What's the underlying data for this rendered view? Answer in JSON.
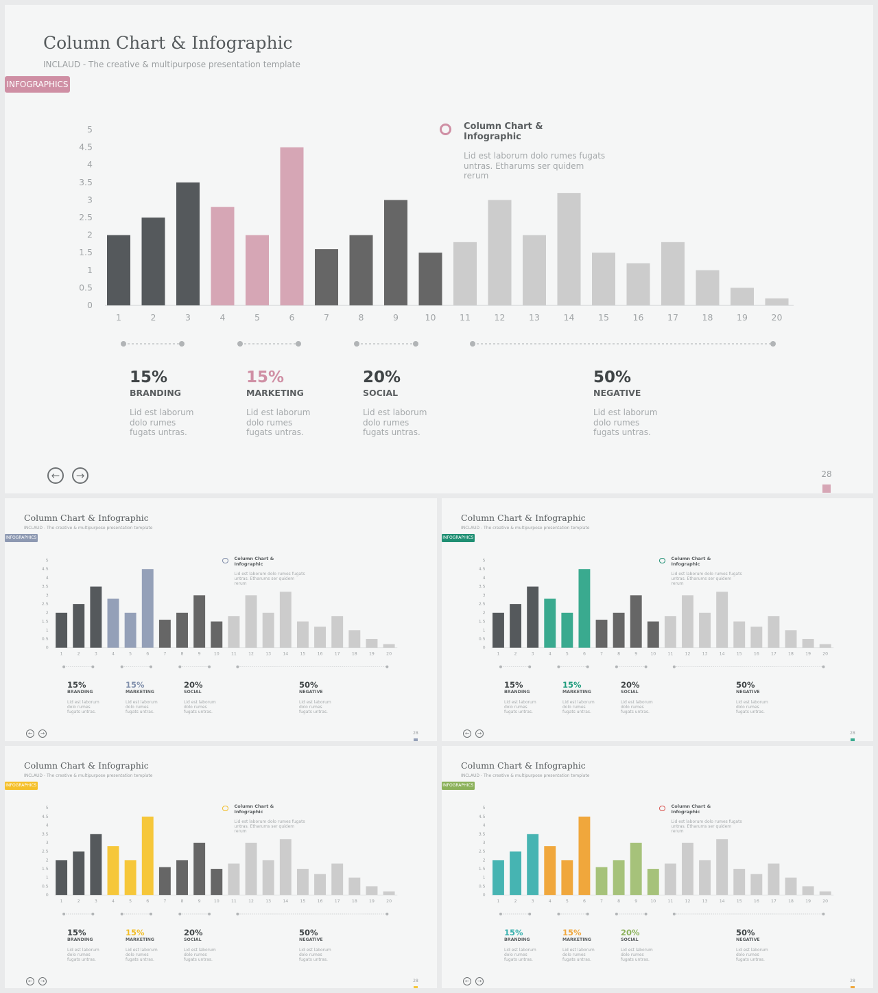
{
  "slides": [
    {
      "title": "Column Chart & Infographic",
      "subtitle": "INCLAUD - The creative & multipurpose presentation template",
      "tag": "INFOGRAPHICS",
      "callout": {
        "title": "Column Chart & Infographic",
        "desc": "Lid est laborum dolo rumes fugats untras. Etharums ser quidem rerum"
      },
      "stats": [
        {
          "pct": "15%",
          "cat": "BRANDING",
          "desc": "Lid est laborum dolo rumes fugats untras."
        },
        {
          "pct": "15%",
          "cat": "MARKETING",
          "desc": "Lid est laborum dolo rumes fugats untras."
        },
        {
          "pct": "20%",
          "cat": "SOCIAL",
          "desc": "Lid est laborum dolo rumes fugats untras."
        },
        {
          "pct": "50%",
          "cat": "NEGATIVE",
          "desc": "Lid est laborum dolo rumes fugats untras."
        }
      ],
      "page_number": "28",
      "colors": {
        "accent": "#d6a6b5",
        "tag": "#cf8fa4",
        "ring": "#cf8fa4",
        "pct": [
          "#3f4446",
          "#cf8fa4",
          "#3f4446",
          "#3f4446"
        ],
        "bars": [
          "#55595c",
          "#55595c",
          "#55595c",
          "#d6a6b5",
          "#d6a6b5",
          "#d6a6b5",
          "#666666",
          "#666666",
          "#666666",
          "#666666",
          "#cccccc",
          "#cccccc",
          "#cccccc",
          "#cccccc",
          "#cccccc",
          "#cccccc",
          "#cccccc",
          "#cccccc",
          "#cccccc",
          "#cccccc"
        ]
      }
    },
    {
      "title": "Column Chart & Infographic",
      "subtitle": "INCLAUD - The creative & multipurpose presentation template",
      "tag": "INFOGRAPHICS",
      "callout": {
        "title": "Column Chart & Infographic",
        "desc": "Lid est laborum dolo rumes fugats untras. Etharums ser quidem rerum"
      },
      "stats": [
        {
          "pct": "15%",
          "cat": "BRANDING",
          "desc": "Lid est laborum dolo rumes fugats untras."
        },
        {
          "pct": "15%",
          "cat": "MARKETING",
          "desc": "Lid est laborum dolo rumes fugats untras."
        },
        {
          "pct": "20%",
          "cat": "SOCIAL",
          "desc": "Lid est laborum dolo rumes fugats untras."
        },
        {
          "pct": "50%",
          "cat": "NEGATIVE",
          "desc": "Lid est laborum dolo rumes fugats untras."
        }
      ],
      "page_number": "28",
      "colors": {
        "accent": "#94a0b8",
        "tag": "#8d99b2",
        "ring": "#7f8ca8",
        "pct": [
          "#3f4446",
          "#8190ac",
          "#3f4446",
          "#3f4446"
        ],
        "bars": [
          "#55595c",
          "#55595c",
          "#55595c",
          "#94a0b8",
          "#94a0b8",
          "#94a0b8",
          "#666666",
          "#666666",
          "#666666",
          "#666666",
          "#cccccc",
          "#cccccc",
          "#cccccc",
          "#cccccc",
          "#cccccc",
          "#cccccc",
          "#cccccc",
          "#cccccc",
          "#cccccc",
          "#cccccc"
        ]
      }
    },
    {
      "title": "Column Chart & Infographic",
      "subtitle": "INCLAUD - The creative & multipurpose presentation template",
      "tag": "INFOGRAPHICS",
      "callout": {
        "title": "Column Chart & Infographic",
        "desc": "Lid est laborum dolo rumes fugats untras. Etharums ser quidem rerum"
      },
      "stats": [
        {
          "pct": "15%",
          "cat": "BRANDING",
          "desc": "Lid est laborum dolo rumes fugats untras."
        },
        {
          "pct": "15%",
          "cat": "MARKETING",
          "desc": "Lid est laborum dolo rumes fugats untras."
        },
        {
          "pct": "20%",
          "cat": "SOCIAL",
          "desc": "Lid est laborum dolo rumes fugats untras."
        },
        {
          "pct": "50%",
          "cat": "NEGATIVE",
          "desc": "Lid est laborum dolo rumes fugats untras."
        }
      ],
      "page_number": "28",
      "colors": {
        "accent": "#3aaa8f",
        "tag": "#1f8f73",
        "ring": "#1f8f73",
        "pct": [
          "#3f4446",
          "#1f9c7d",
          "#3f4446",
          "#3f4446"
        ],
        "bars": [
          "#55595c",
          "#55595c",
          "#55595c",
          "#3aaa8f",
          "#3aaa8f",
          "#3aaa8f",
          "#666666",
          "#666666",
          "#666666",
          "#666666",
          "#cccccc",
          "#cccccc",
          "#cccccc",
          "#cccccc",
          "#cccccc",
          "#cccccc",
          "#cccccc",
          "#cccccc",
          "#cccccc",
          "#cccccc"
        ]
      }
    },
    {
      "title": "Column Chart & Infographic",
      "subtitle": "INCLAUD - The creative & multipurpose presentation template",
      "tag": "INFOGRAPHICS",
      "callout": {
        "title": "Column Chart & Infographic",
        "desc": "Lid est laborum dolo rumes fugats untras. Etharums ser quidem rerum"
      },
      "stats": [
        {
          "pct": "15%",
          "cat": "BRANDING",
          "desc": "Lid est laborum dolo rumes fugats untras."
        },
        {
          "pct": "15%",
          "cat": "MARKETING",
          "desc": "Lid est laborum dolo rumes fugats untras."
        },
        {
          "pct": "20%",
          "cat": "SOCIAL",
          "desc": "Lid est laborum dolo rumes fugats untras."
        },
        {
          "pct": "50%",
          "cat": "NEGATIVE",
          "desc": "Lid est laborum dolo rumes fugats untras."
        }
      ],
      "page_number": "28",
      "colors": {
        "accent": "#f6c73a",
        "tag": "#f5c02a",
        "ring": "#f2bd27",
        "pct": [
          "#3f4446",
          "#f2bd27",
          "#3f4446",
          "#3f4446"
        ],
        "bars": [
          "#55595c",
          "#55595c",
          "#55595c",
          "#f6c73a",
          "#f6c73a",
          "#f6c73a",
          "#666666",
          "#666666",
          "#666666",
          "#666666",
          "#cccccc",
          "#cccccc",
          "#cccccc",
          "#cccccc",
          "#cccccc",
          "#cccccc",
          "#cccccc",
          "#cccccc",
          "#cccccc",
          "#cccccc"
        ]
      }
    },
    {
      "title": "Column Chart & Infographic",
      "subtitle": "INCLAUD - The creative & multipurpose presentation template",
      "tag": "INFOGRAPHICS",
      "callout": {
        "title": "Column Chart & Infographic",
        "desc": "Lid est laborum dolo rumes fugats untras. Etharums ser quidem rerum"
      },
      "stats": [
        {
          "pct": "15%",
          "cat": "BRANDING",
          "desc": "Lid est laborum dolo rumes fugats untras."
        },
        {
          "pct": "15%",
          "cat": "MARKETING",
          "desc": "Lid est laborum dolo rumes fugats untras."
        },
        {
          "pct": "20%",
          "cat": "SOCIAL",
          "desc": "Lid est laborum dolo rumes fugats untras."
        },
        {
          "pct": "50%",
          "cat": "NEGATIVE",
          "desc": "Lid est laborum dolo rumes fugats untras."
        }
      ],
      "page_number": "28",
      "colors": {
        "accent": "#f0a73c",
        "tag": "#8bb15a",
        "ring": "#d9534f",
        "pct": [
          "#3bb2b0",
          "#f0a73c",
          "#8bb15a",
          "#3f4446"
        ],
        "bars": [
          "#46b4b2",
          "#46b4b2",
          "#46b4b2",
          "#f0a73c",
          "#f0a73c",
          "#f0a73c",
          "#a6c27a",
          "#a6c27a",
          "#a6c27a",
          "#a6c27a",
          "#cccccc",
          "#cccccc",
          "#cccccc",
          "#cccccc",
          "#cccccc",
          "#cccccc",
          "#cccccc",
          "#cccccc",
          "#cccccc",
          "#cccccc"
        ]
      }
    }
  ],
  "chart_data": {
    "type": "bar",
    "categories": [
      "1",
      "2",
      "3",
      "4",
      "5",
      "6",
      "7",
      "8",
      "9",
      "10",
      "11",
      "12",
      "13",
      "14",
      "15",
      "16",
      "17",
      "18",
      "19",
      "20"
    ],
    "values": [
      2,
      2.5,
      3.5,
      2.8,
      2,
      4.5,
      1.6,
      2,
      3,
      1.5,
      1.8,
      3,
      2,
      3.2,
      1.5,
      1.2,
      1.8,
      1,
      0.5,
      0.2
    ],
    "yticks": [
      "0",
      "0.5",
      "1",
      "1.5",
      "2",
      "2.5",
      "3",
      "3.5",
      "4",
      "4.5",
      "5"
    ],
    "ylim": [
      0,
      5
    ],
    "grid": false,
    "groups": [
      {
        "from": "1",
        "to": "3"
      },
      {
        "from": "4",
        "to": "6"
      },
      {
        "from": "7",
        "to": "9"
      },
      {
        "from": "11",
        "to": "20"
      }
    ]
  }
}
